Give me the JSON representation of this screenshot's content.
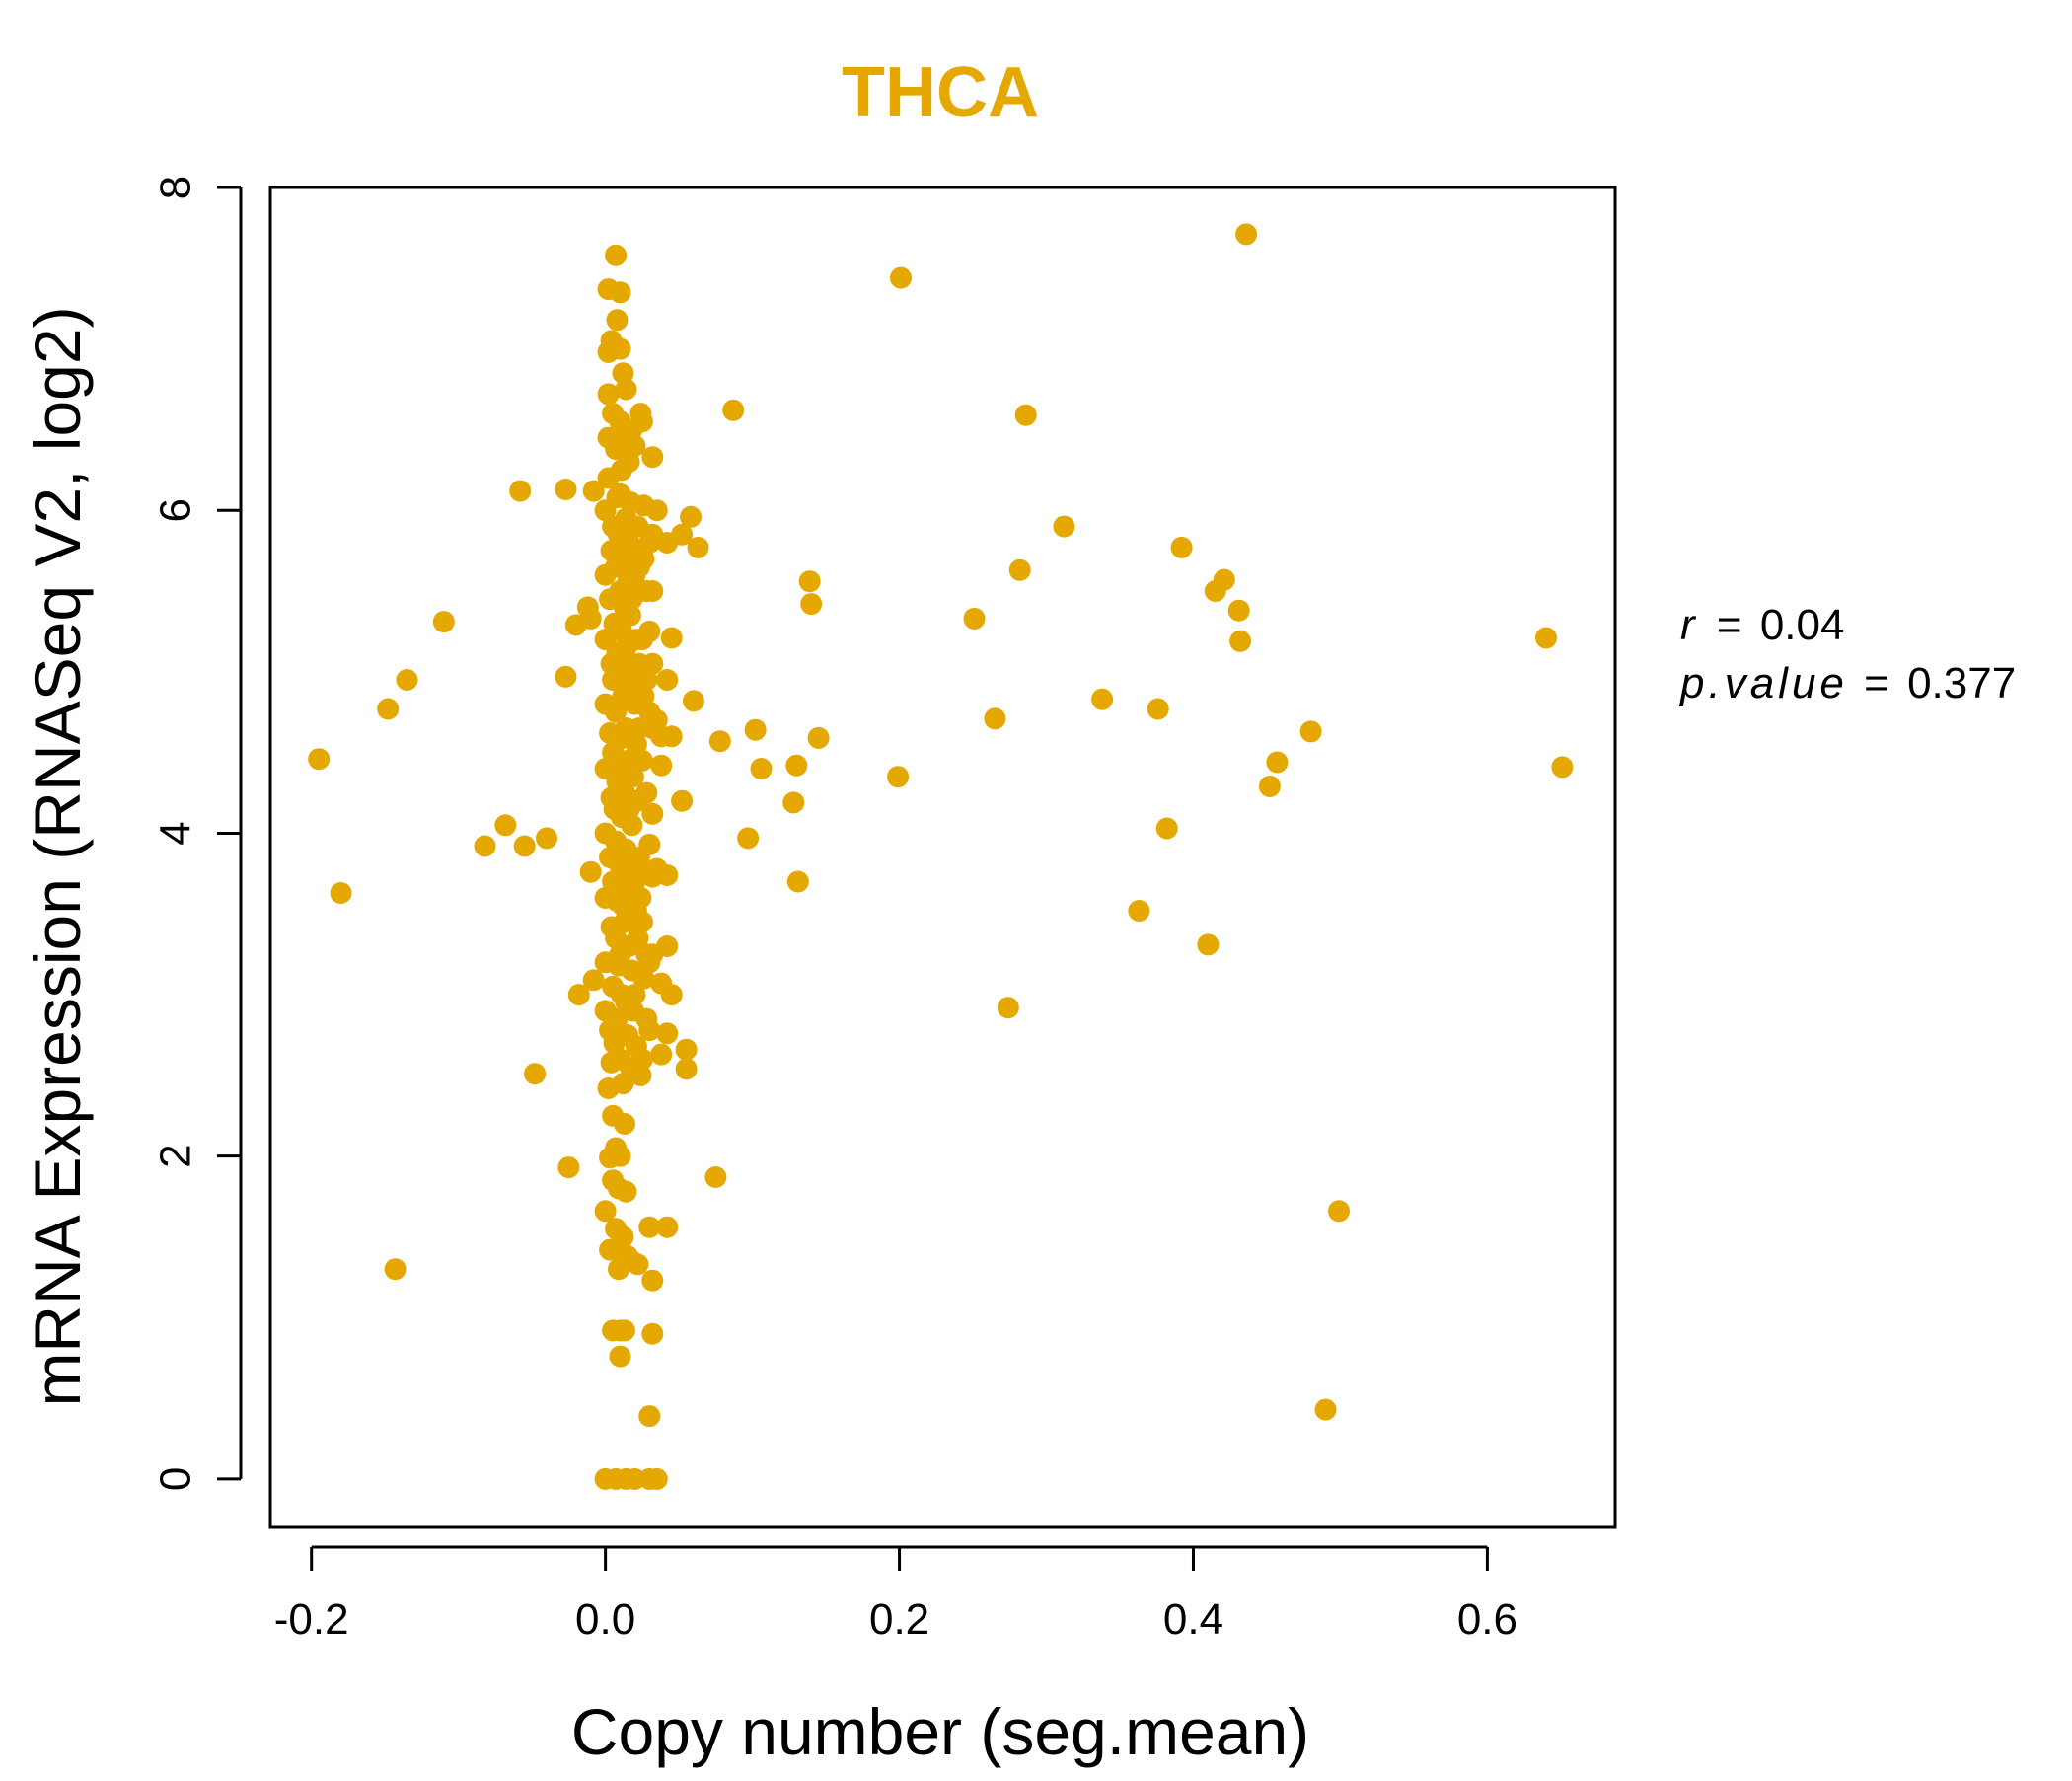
{
  "chart_data": {
    "type": "scatter",
    "title": "THCA",
    "xlabel": "Copy number (seg.mean)",
    "ylabel": "mRNA Expression (RNASeq V2, log2)",
    "xlim": [
      -0.228,
      0.687
    ],
    "ylim": [
      -0.3,
      8.0
    ],
    "x_ticks": [
      -0.2,
      0.0,
      0.2,
      0.4,
      0.6
    ],
    "x_tick_labels": [
      "-0.2",
      "0.0",
      "0.2",
      "0.4",
      "0.6"
    ],
    "y_ticks": [
      0,
      2,
      4,
      6,
      8
    ],
    "y_tick_labels": [
      "0",
      "2",
      "4",
      "6",
      "8"
    ],
    "grid": false,
    "point_color": "#E5A800",
    "stats": {
      "r_label": "r",
      "r_value": "0.04",
      "p_label": "p.value",
      "p_value": "0.377"
    },
    "series": [
      {
        "name": "THCA samples",
        "points": [
          [
            -0.195,
            4.46
          ],
          [
            -0.18,
            3.63
          ],
          [
            -0.148,
            4.77
          ],
          [
            -0.143,
            1.3
          ],
          [
            -0.135,
            4.95
          ],
          [
            -0.11,
            5.31
          ],
          [
            -0.082,
            3.92
          ],
          [
            -0.068,
            4.05
          ],
          [
            -0.058,
            6.12
          ],
          [
            -0.055,
            3.92
          ],
          [
            -0.048,
            2.51
          ],
          [
            -0.04,
            3.97
          ],
          [
            -0.027,
            6.13
          ],
          [
            -0.027,
            4.97
          ],
          [
            -0.025,
            1.93
          ],
          [
            -0.02,
            5.29
          ],
          [
            -0.018,
            3.0
          ],
          [
            -0.012,
            5.4
          ],
          [
            -0.01,
            5.33
          ],
          [
            -0.01,
            3.76
          ],
          [
            -0.008,
            6.12
          ],
          [
            -0.008,
            3.09
          ],
          [
            0.0,
            6.0
          ],
          [
            0.0,
            5.6
          ],
          [
            0.0,
            5.2
          ],
          [
            0.0,
            4.8
          ],
          [
            0.0,
            4.4
          ],
          [
            0.0,
            4.0
          ],
          [
            0.0,
            3.6
          ],
          [
            0.0,
            3.2
          ],
          [
            0.0,
            2.9
          ],
          [
            0.0,
            1.66
          ],
          [
            0.0,
            0.0
          ],
          [
            0.002,
            7.37
          ],
          [
            0.002,
            6.98
          ],
          [
            0.002,
            6.72
          ],
          [
            0.002,
            6.45
          ],
          [
            0.002,
            6.2
          ],
          [
            0.002,
            2.42
          ],
          [
            0.003,
            5.45
          ],
          [
            0.003,
            4.62
          ],
          [
            0.003,
            3.85
          ],
          [
            0.003,
            2.78
          ],
          [
            0.003,
            1.99
          ],
          [
            0.003,
            1.42
          ],
          [
            0.004,
            7.05
          ],
          [
            0.004,
            5.75
          ],
          [
            0.004,
            5.05
          ],
          [
            0.004,
            4.22
          ],
          [
            0.004,
            3.42
          ],
          [
            0.004,
            2.58
          ],
          [
            0.005,
            6.6
          ],
          [
            0.005,
            5.9
          ],
          [
            0.005,
            4.95
          ],
          [
            0.005,
            4.5
          ],
          [
            0.005,
            3.7
          ],
          [
            0.005,
            3.05
          ],
          [
            0.005,
            2.25
          ],
          [
            0.005,
            1.85
          ],
          [
            0.005,
            0.92
          ],
          [
            0.006,
            5.3
          ],
          [
            0.006,
            4.15
          ],
          [
            0.006,
            2.7
          ],
          [
            0.007,
            7.58
          ],
          [
            0.007,
            6.38
          ],
          [
            0.007,
            5.65
          ],
          [
            0.007,
            4.75
          ],
          [
            0.007,
            3.95
          ],
          [
            0.007,
            3.35
          ],
          [
            0.007,
            2.05
          ],
          [
            0.007,
            1.55
          ],
          [
            0.007,
            0.0
          ],
          [
            0.008,
            7.18
          ],
          [
            0.008,
            6.08
          ],
          [
            0.008,
            5.12
          ],
          [
            0.008,
            4.32
          ],
          [
            0.008,
            3.58
          ],
          [
            0.008,
            2.85
          ],
          [
            0.009,
            5.85
          ],
          [
            0.009,
            4.58
          ],
          [
            0.009,
            3.18
          ],
          [
            0.009,
            1.8
          ],
          [
            0.009,
            1.3
          ],
          [
            0.01,
            7.35
          ],
          [
            0.01,
            7.0
          ],
          [
            0.01,
            6.55
          ],
          [
            0.01,
            6.1
          ],
          [
            0.01,
            5.5
          ],
          [
            0.01,
            5.0
          ],
          [
            0.01,
            4.4
          ],
          [
            0.01,
            3.8
          ],
          [
            0.01,
            3.25
          ],
          [
            0.01,
            2.6
          ],
          [
            0.01,
            2.0
          ],
          [
            0.01,
            1.45
          ],
          [
            0.01,
            0.92
          ],
          [
            0.01,
            0.76
          ],
          [
            0.011,
            6.25
          ],
          [
            0.011,
            5.25
          ],
          [
            0.011,
            4.1
          ],
          [
            0.011,
            3.0
          ],
          [
            0.012,
            6.85
          ],
          [
            0.012,
            5.7
          ],
          [
            0.012,
            4.85
          ],
          [
            0.012,
            3.55
          ],
          [
            0.012,
            2.45
          ],
          [
            0.012,
            1.5
          ],
          [
            0.013,
            6.4
          ],
          [
            0.013,
            5.4
          ],
          [
            0.013,
            4.25
          ],
          [
            0.013,
            3.45
          ],
          [
            0.013,
            2.2
          ],
          [
            0.013,
            0.92
          ],
          [
            0.014,
            6.75
          ],
          [
            0.014,
            5.95
          ],
          [
            0.014,
            5.15
          ],
          [
            0.014,
            4.65
          ],
          [
            0.014,
            3.9
          ],
          [
            0.014,
            2.95
          ],
          [
            0.014,
            1.78
          ],
          [
            0.014,
            0.0
          ],
          [
            0.015,
            6.5
          ],
          [
            0.015,
            5.55
          ],
          [
            0.015,
            4.45
          ],
          [
            0.015,
            3.65
          ],
          [
            0.015,
            2.75
          ],
          [
            0.015,
            1.38
          ],
          [
            0.016,
            6.3
          ],
          [
            0.016,
            5.8
          ],
          [
            0.016,
            5.05
          ],
          [
            0.016,
            4.15
          ],
          [
            0.016,
            3.3
          ],
          [
            0.017,
            6.05
          ],
          [
            0.017,
            5.35
          ],
          [
            0.017,
            4.6
          ],
          [
            0.017,
            3.75
          ],
          [
            0.017,
            2.55
          ],
          [
            0.018,
            6.5
          ],
          [
            0.018,
            5.45
          ],
          [
            0.018,
            4.95
          ],
          [
            0.018,
            4.05
          ],
          [
            0.018,
            3.15
          ],
          [
            0.018,
            1.35
          ],
          [
            0.019,
            5.75
          ],
          [
            0.019,
            4.35
          ],
          [
            0.019,
            2.9
          ],
          [
            0.02,
            6.4
          ],
          [
            0.02,
            5.6
          ],
          [
            0.02,
            4.8
          ],
          [
            0.02,
            3.7
          ],
          [
            0.02,
            3.0
          ],
          [
            0.02,
            0.0
          ],
          [
            0.021,
            5.2
          ],
          [
            0.021,
            4.55
          ],
          [
            0.021,
            3.52
          ],
          [
            0.021,
            2.68
          ],
          [
            0.022,
            5.9
          ],
          [
            0.022,
            4.2
          ],
          [
            0.022,
            3.35
          ],
          [
            0.022,
            1.33
          ],
          [
            0.023,
            5.65
          ],
          [
            0.023,
            5.05
          ],
          [
            0.023,
            4.65
          ],
          [
            0.023,
            3.85
          ],
          [
            0.024,
            6.6
          ],
          [
            0.024,
            5.5
          ],
          [
            0.024,
            4.9
          ],
          [
            0.024,
            3.6
          ],
          [
            0.024,
            2.5
          ],
          [
            0.025,
            6.55
          ],
          [
            0.025,
            5.2
          ],
          [
            0.025,
            4.45
          ],
          [
            0.025,
            3.45
          ],
          [
            0.025,
            2.6
          ],
          [
            0.026,
            6.03
          ],
          [
            0.026,
            5.7
          ],
          [
            0.026,
            4.85
          ],
          [
            0.026,
            3.75
          ],
          [
            0.026,
            3.1
          ],
          [
            0.028,
            5.5
          ],
          [
            0.028,
            4.95
          ],
          [
            0.028,
            4.25
          ],
          [
            0.028,
            3.25
          ],
          [
            0.028,
            2.85
          ],
          [
            0.03,
            5.8
          ],
          [
            0.03,
            5.25
          ],
          [
            0.03,
            4.75
          ],
          [
            0.03,
            3.93
          ],
          [
            0.03,
            3.2
          ],
          [
            0.03,
            2.78
          ],
          [
            0.03,
            1.56
          ],
          [
            0.03,
            0.39
          ],
          [
            0.03,
            0.0
          ],
          [
            0.032,
            6.33
          ],
          [
            0.032,
            5.85
          ],
          [
            0.032,
            5.5
          ],
          [
            0.032,
            5.05
          ],
          [
            0.032,
            4.65
          ],
          [
            0.032,
            4.12
          ],
          [
            0.032,
            3.73
          ],
          [
            0.032,
            3.25
          ],
          [
            0.032,
            1.23
          ],
          [
            0.032,
            0.9
          ],
          [
            0.035,
            6.0
          ],
          [
            0.035,
            4.7
          ],
          [
            0.035,
            3.78
          ],
          [
            0.035,
            0.0
          ],
          [
            0.038,
            4.6
          ],
          [
            0.038,
            4.42
          ],
          [
            0.038,
            3.07
          ],
          [
            0.038,
            2.63
          ],
          [
            0.042,
            5.8
          ],
          [
            0.042,
            4.95
          ],
          [
            0.042,
            3.74
          ],
          [
            0.042,
            3.3
          ],
          [
            0.042,
            2.76
          ],
          [
            0.042,
            1.56
          ],
          [
            0.045,
            4.6
          ],
          [
            0.045,
            3.0
          ],
          [
            0.045,
            5.21
          ],
          [
            0.052,
            5.85
          ],
          [
            0.052,
            4.2
          ],
          [
            0.055,
            2.66
          ],
          [
            0.055,
            2.54
          ],
          [
            0.058,
            5.96
          ],
          [
            0.06,
            4.82
          ],
          [
            0.063,
            5.77
          ],
          [
            0.075,
            1.87
          ],
          [
            0.078,
            4.57
          ],
          [
            0.087,
            6.62
          ],
          [
            0.097,
            3.97
          ],
          [
            0.102,
            4.64
          ],
          [
            0.106,
            4.4
          ],
          [
            0.128,
            4.19
          ],
          [
            0.13,
            4.42
          ],
          [
            0.131,
            3.7
          ],
          [
            0.139,
            5.56
          ],
          [
            0.14,
            5.42
          ],
          [
            0.145,
            4.59
          ],
          [
            0.199,
            4.35
          ],
          [
            0.201,
            7.44
          ],
          [
            0.251,
            5.33
          ],
          [
            0.265,
            4.71
          ],
          [
            0.274,
            2.92
          ],
          [
            0.282,
            5.63
          ],
          [
            0.286,
            6.59
          ],
          [
            0.312,
            5.9
          ],
          [
            0.338,
            4.83
          ],
          [
            0.363,
            3.52
          ],
          [
            0.376,
            4.77
          ],
          [
            0.382,
            4.03
          ],
          [
            0.392,
            5.77
          ],
          [
            0.41,
            3.31
          ],
          [
            0.415,
            5.5
          ],
          [
            0.421,
            5.57
          ],
          [
            0.431,
            5.38
          ],
          [
            0.432,
            5.19
          ],
          [
            0.436,
            7.71
          ],
          [
            0.452,
            4.29
          ],
          [
            0.457,
            4.44
          ],
          [
            0.48,
            4.63
          ],
          [
            0.49,
            0.43
          ],
          [
            0.499,
            1.66
          ],
          [
            0.64,
            5.21
          ],
          [
            0.651,
            4.41
          ]
        ]
      }
    ]
  }
}
